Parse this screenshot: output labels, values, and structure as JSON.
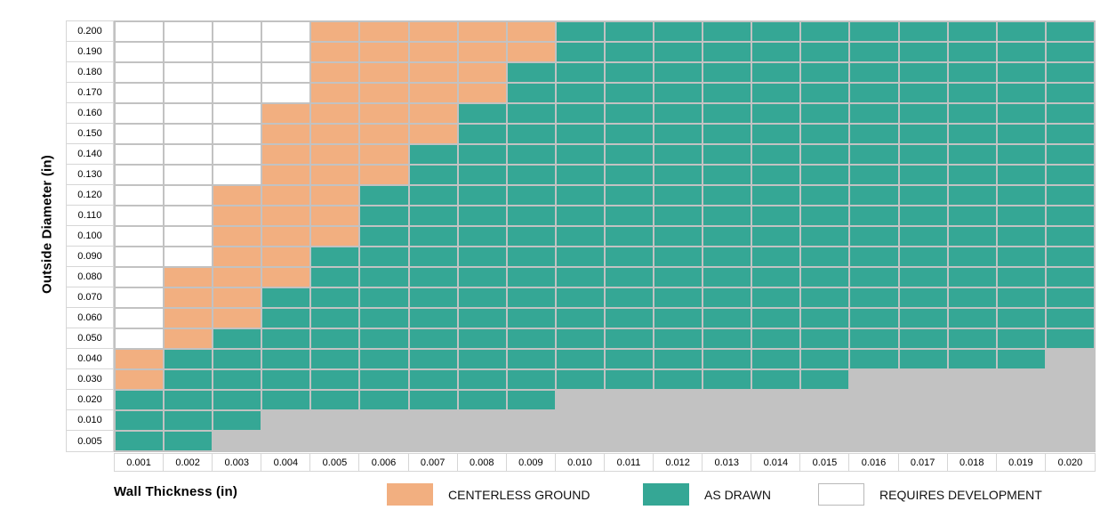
{
  "chart_data": {
    "type": "heatmap",
    "xlabel": "Wall Thickness (in)",
    "ylabel": "Outside Diameter (in)",
    "x_categories": [
      "0.001",
      "0.002",
      "0.003",
      "0.004",
      "0.005",
      "0.006",
      "0.007",
      "0.008",
      "0.009",
      "0.010",
      "0.011",
      "0.012",
      "0.013",
      "0.014",
      "0.015",
      "0.016",
      "0.017",
      "0.018",
      "0.019",
      "0.020"
    ],
    "y_categories": [
      "0.200",
      "0.190",
      "0.180",
      "0.170",
      "0.160",
      "0.150",
      "0.140",
      "0.130",
      "0.120",
      "0.110",
      "0.100",
      "0.090",
      "0.080",
      "0.070",
      "0.060",
      "0.050",
      "0.040",
      "0.030",
      "0.020",
      "0.010",
      "0.005"
    ],
    "cell_codes": {
      "C": "CENTERLESS GROUND",
      "A": "AS DRAWN",
      "W": "REQUIRES DEVELOPMENT",
      "N": "blank (not applicable)"
    },
    "matrix": [
      "WWWWCCCCCAAAAAAAAAAA",
      "WWWWCCCCCAAAAAAAAAAA",
      "WWWWCCCCAAAAAAAAAAAA",
      "WWWWCCCCAAAAAAAAAAAA",
      "WWWCCCCAAAAAAAAAAAAA",
      "WWWCCCCAAAAAAAAAAAAA",
      "WWWCCCAAAAAAAAAAAAAA",
      "WWWCCCAAAAAAAAAAAAAA",
      "WWCCCAAAAAAAAAAAAAAA",
      "WWCCCAAAAAAAAAAAAAAA",
      "WWCCCAAAAAAAAAAAAAAA",
      "WWCCAAAAAAAAAAAAAAAA",
      "WCCCAAAAAAAAAAAAAAAA",
      "WCCAAAAAAAAAAAAAAAAA",
      "WCCAAAAAAAAAAAAAAAAA",
      "WCAAAAAAAAAAAAAAAAAA",
      "CAAAAAAAAAAAAAAAAAAN",
      "CAAAAAAAAAAAAAANNNNN",
      "AAAAAAAAANNNNNNNNNNN",
      "AAANNNNNNNNNNNNNNNNN",
      "AANNNNNNNNNNNNNNNNNN"
    ],
    "legend_position": "bottom",
    "grid": true
  },
  "axes": {
    "x_title": "Wall Thickness (in)",
    "y_title": "Outside Diameter (in)"
  },
  "legend": {
    "items": [
      {
        "label": "CENTERLESS GROUND",
        "code": "C",
        "color": "#f2af80"
      },
      {
        "label": "AS DRAWN",
        "code": "A",
        "color": "#35a795"
      },
      {
        "label": "REQUIRES DEVELOPMENT",
        "code": "W",
        "color": "#ffffff"
      }
    ]
  },
  "colors": {
    "centerless_ground": "#f2af80",
    "as_drawn": "#35a795",
    "requires_development": "#ffffff",
    "blank_background": "#c2c2c2",
    "gridline": "#c2c2c2",
    "tick_border": "#d6d6d6",
    "text": "#000000"
  }
}
